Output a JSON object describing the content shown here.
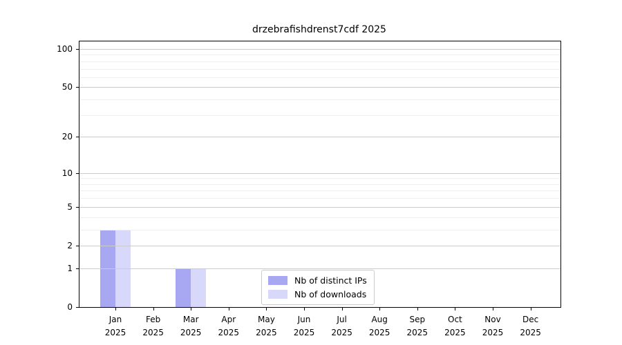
{
  "chart_data": {
    "type": "bar",
    "title": "drzebrafishdrenst7cdf 2025",
    "categories": [
      "Jan",
      "Feb",
      "Mar",
      "Apr",
      "May",
      "Jun",
      "Jul",
      "Aug",
      "Sep",
      "Oct",
      "Nov",
      "Dec"
    ],
    "x_tick_year": "2025",
    "series": [
      {
        "name": "Nb of distinct IPs",
        "color": "#a8a8f2",
        "values": [
          3,
          0,
          1,
          0,
          0,
          0,
          0,
          0,
          0,
          0,
          0,
          0
        ]
      },
      {
        "name": "Nb of downloads",
        "color": "#d8d8fa",
        "values": [
          3,
          0,
          1,
          0,
          0,
          0,
          0,
          0,
          0,
          0,
          0,
          0
        ]
      }
    ],
    "yaxis": {
      "scale": "log1p",
      "tick_values": [
        0,
        1,
        2,
        5,
        10,
        20,
        50,
        100
      ],
      "minor_tick_values": [
        3,
        4,
        6,
        7,
        8,
        9,
        30,
        40,
        60,
        70,
        80,
        90
      ],
      "ylim": [
        0,
        115
      ]
    },
    "xlabel": "",
    "ylabel": "",
    "grid": "horizontal",
    "legend_position": "lower center"
  }
}
